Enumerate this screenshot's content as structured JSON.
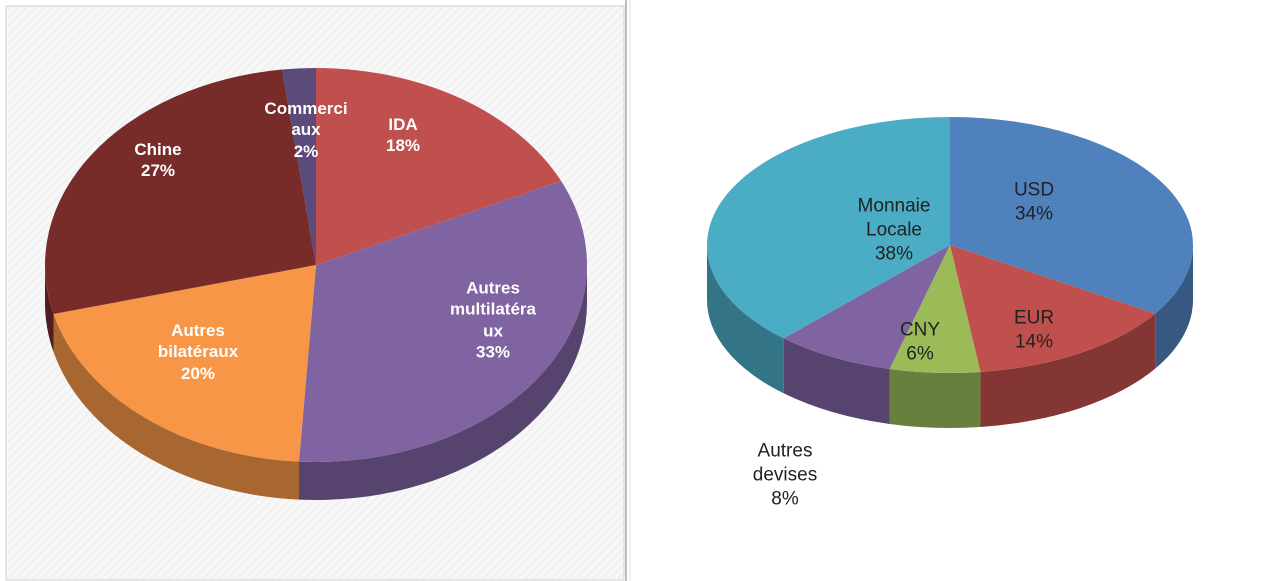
{
  "chart_data": [
    {
      "type": "pie3d",
      "categories": [
        "IDA",
        "Autres multilatéraux",
        "Autres bilatéraux",
        "Chine",
        "Commerciaux"
      ],
      "values": [
        18,
        33,
        20,
        27,
        2
      ],
      "value_labels": [
        "18%",
        "33%",
        "20%",
        "27%",
        "2%"
      ],
      "colors": [
        "#c0504d",
        "#8064a2",
        "#f79646",
        "#772c2a",
        "#5b4a7a"
      ]
    },
    {
      "type": "pie3d",
      "categories": [
        "USD",
        "EUR",
        "CNY",
        "Autres devises",
        "Monnaie Locale"
      ],
      "values": [
        34,
        14,
        6,
        8,
        38
      ],
      "value_labels": [
        "34%",
        "14%",
        "6%",
        "8%",
        "38%"
      ],
      "colors": [
        "#4f81bd",
        "#c0504d",
        "#9bbb59",
        "#8064a2",
        "#4bacc6"
      ]
    }
  ]
}
